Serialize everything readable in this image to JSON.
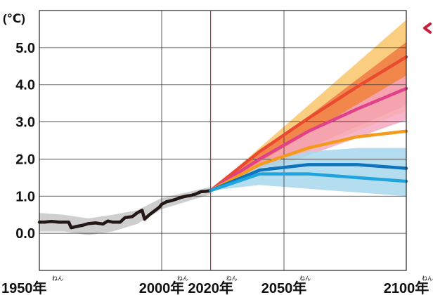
{
  "chart_data": {
    "type": "line",
    "ylabel": "(℃)",
    "xlim": [
      1950,
      2100
    ],
    "ylim": [
      -1.0,
      6.0
    ],
    "y_ticks": [
      {
        "value": 0,
        "label": "0.0"
      },
      {
        "value": 1,
        "label": "1.0"
      },
      {
        "value": 2,
        "label": "2.0"
      },
      {
        "value": 3,
        "label": "3.0"
      },
      {
        "value": 4,
        "label": "4.0"
      },
      {
        "value": 5,
        "label": "5.0"
      }
    ],
    "x_ticks": [
      {
        "value": 1950,
        "label": "1950年",
        "ruby": "ねん"
      },
      {
        "value": 2000,
        "label": "2000年",
        "ruby": "ねん"
      },
      {
        "value": 2020,
        "label": "2020年",
        "ruby": "ねん"
      },
      {
        "value": 2050,
        "label": "2050年",
        "ruby": "ねん"
      },
      {
        "value": 2100,
        "label": "2100年",
        "ruby": "ねん"
      }
    ],
    "grid": true,
    "reference_line": {
      "x": 2020,
      "color": "#d9222a"
    },
    "bands": [
      {
        "color": "#f9c66a",
        "x": [
          2020,
          2100
        ],
        "upper": [
          1.15,
          5.75
        ],
        "lower": [
          1.15,
          3.3
        ]
      },
      {
        "color": "#ef7a42",
        "x": [
          2020,
          2100
        ],
        "upper": [
          1.15,
          5.15
        ],
        "lower": [
          1.15,
          3.45
        ]
      },
      {
        "color": "#f6a8bf",
        "x": [
          2020,
          2100
        ],
        "upper": [
          1.15,
          4.25
        ],
        "lower": [
          1.15,
          3.05
        ]
      },
      {
        "color": "#a7d8ec",
        "x": [
          2020,
          2040,
          2060,
          2080,
          2100
        ],
        "upper": [
          1.15,
          1.9,
          2.2,
          2.3,
          2.3
        ],
        "lower": [
          1.15,
          1.3,
          1.2,
          1.1,
          1.0
        ]
      }
    ],
    "historical_band": {
      "color": "#cfcfcf",
      "x": [
        1950,
        1960,
        1970,
        1980,
        1990,
        2000,
        2010,
        2020
      ],
      "upper": [
        0.55,
        0.5,
        0.4,
        0.5,
        0.62,
        0.95,
        1.1,
        1.25
      ],
      "lower": [
        0.05,
        0.05,
        -0.05,
        0.05,
        0.25,
        0.65,
        0.85,
        1.05
      ]
    },
    "series": [
      {
        "color": "#231815",
        "x": [
          1950,
          1952,
          1955,
          1958,
          1962,
          1963,
          1965,
          1968,
          1970,
          1973,
          1976,
          1978,
          1980,
          1983,
          1985,
          1988,
          1990,
          1992,
          1993,
          1995,
          1997,
          1999,
          2000,
          2002,
          2004,
          2006,
          2008,
          2010,
          2012,
          2014,
          2016,
          2018,
          2020
        ],
        "y": [
          0.3,
          0.3,
          0.32,
          0.3,
          0.3,
          0.15,
          0.18,
          0.22,
          0.26,
          0.28,
          0.25,
          0.33,
          0.3,
          0.3,
          0.42,
          0.45,
          0.55,
          0.62,
          0.38,
          0.5,
          0.6,
          0.7,
          0.78,
          0.85,
          0.88,
          0.92,
          0.97,
          1.0,
          1.02,
          1.06,
          1.12,
          1.13,
          1.15
        ]
      },
      {
        "color": "#ea4a2f",
        "x": [
          2020,
          2040,
          2060,
          2080,
          2100
        ],
        "y": [
          1.15,
          2.2,
          3.1,
          3.95,
          4.75
        ]
      },
      {
        "color": "#e0418a",
        "x": [
          2020,
          2040,
          2060,
          2080,
          2100
        ],
        "y": [
          1.15,
          2.0,
          2.75,
          3.35,
          3.9
        ]
      },
      {
        "color": "#f29b1d",
        "x": [
          2020,
          2040,
          2060,
          2080,
          2100
        ],
        "y": [
          1.15,
          1.85,
          2.3,
          2.6,
          2.75
        ]
      },
      {
        "color": "#0e72bd",
        "x": [
          2020,
          2040,
          2060,
          2080,
          2100
        ],
        "y": [
          1.15,
          1.7,
          1.85,
          1.85,
          1.75
        ]
      },
      {
        "color": "#1fa4dd",
        "x": [
          2020,
          2040,
          2060,
          2080,
          2100
        ],
        "y": [
          1.15,
          1.6,
          1.6,
          1.5,
          1.4
        ]
      }
    ]
  }
}
